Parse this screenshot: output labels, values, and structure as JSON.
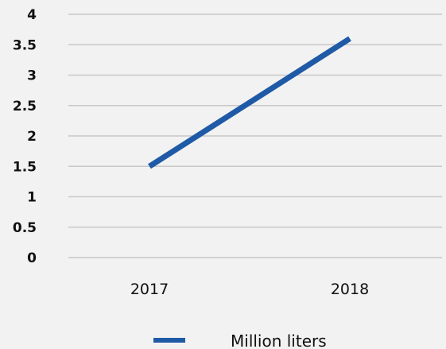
{
  "chart_data": {
    "type": "line",
    "x": [
      "2017",
      "2018"
    ],
    "series": [
      {
        "name": "Million liters",
        "values": [
          1.5,
          3.6
        ],
        "color": "#1f5aa6"
      }
    ],
    "yticks": [
      "0",
      "0.5",
      "1",
      "1.5",
      "2",
      "2.5",
      "3",
      "3.5",
      "4"
    ],
    "ylim": [
      0,
      4
    ],
    "grid": true,
    "gridline_color": "#c8c8c8",
    "legend_position": "bottom",
    "title": "",
    "xlabel": "",
    "ylabel": ""
  }
}
